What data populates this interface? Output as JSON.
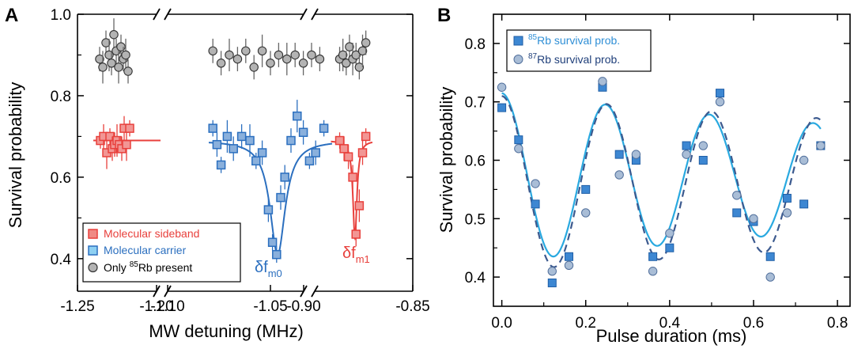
{
  "chart_data": [
    {
      "panel": "A",
      "type": "scatter",
      "xlabel": "MW detuning (MHz)",
      "ylabel": "Survival probability",
      "ylim": [
        0.32,
        1.0
      ],
      "yticks": [
        "0.4",
        "0.6",
        "0.8",
        "1.0"
      ],
      "xticks": [
        "-1.25",
        "-1.20",
        "-1.10",
        "-1.05",
        "-0.90",
        "-0.85"
      ],
      "axis_breaks": [
        "-1.20 to -1.10",
        "-1.05 to -0.90"
      ],
      "legend": {
        "placement": "bottom-left",
        "entries": [
          {
            "label": "Molecular sideband",
            "color": "#e8403c"
          },
          {
            "label": "Molecular carrier",
            "color": "#2b6fbf"
          },
          {
            "label_pre": "Only ",
            "label_sup": "85",
            "label_post": "Rb present",
            "color": "#333333"
          }
        ]
      },
      "annotations": [
        {
          "text": "δf",
          "sub": "m0",
          "color": "#2b6fbf"
        },
        {
          "text": "δf",
          "sub": "m1",
          "color": "#e8403c"
        }
      ],
      "series": [
        {
          "name": "Molecular sideband",
          "segment": 1,
          "marker": "square",
          "color": "#e8403c",
          "x": [
            -1.2355,
            -1.2335,
            -1.2315,
            -1.2295,
            -1.228,
            -1.2265,
            -1.225,
            -1.2235,
            -1.222,
            -1.2205,
            -1.219,
            -1.217
          ],
          "y": [
            0.69,
            0.7,
            0.66,
            0.7,
            0.67,
            0.68,
            0.69,
            0.68,
            0.67,
            0.72,
            0.68,
            0.72
          ],
          "err": [
            0.02,
            0.03,
            0.04,
            0.02,
            0.03,
            0.03,
            0.04,
            0.02,
            0.03,
            0.03,
            0.04,
            0.02
          ]
        },
        {
          "name": "Molecular carrier",
          "segment": 2,
          "marker": "square",
          "color": "#2b6fbf",
          "x": [
            -1.078,
            -1.076,
            -1.074,
            -1.071,
            -1.068,
            -1.064,
            -1.06,
            -1.057,
            -1.054,
            -1.051,
            -1.049,
            -1.047,
            -1.045,
            -1.043,
            -1.04,
            -1.037,
            -1.034,
            -1.031,
            -1.028,
            -1.024
          ],
          "y": [
            0.72,
            0.68,
            0.63,
            0.7,
            0.67,
            0.7,
            0.69,
            0.64,
            0.66,
            0.52,
            0.44,
            0.41,
            0.55,
            0.6,
            0.69,
            0.75,
            0.71,
            0.64,
            0.66,
            0.72
          ],
          "err": [
            0.02,
            0.03,
            0.02,
            0.04,
            0.03,
            0.03,
            0.04,
            0.02,
            0.03,
            0.03,
            0.02,
            0.02,
            0.03,
            0.03,
            0.03,
            0.04,
            0.03,
            0.02,
            0.03,
            0.02
          ]
        },
        {
          "name": "Molecular sideband",
          "segment": 3,
          "marker": "square",
          "color": "#e8403c",
          "x": [
            -0.8835,
            -0.8815,
            -0.8795,
            -0.8775,
            -0.876,
            -0.8745,
            -0.873,
            -0.8715
          ],
          "y": [
            0.69,
            0.67,
            0.65,
            0.6,
            0.46,
            0.53,
            0.66,
            0.7
          ],
          "err": [
            0.02,
            0.03,
            0.03,
            0.03,
            0.03,
            0.04,
            0.03,
            0.02
          ]
        },
        {
          "name": "Only 85Rb present",
          "segment": 1,
          "marker": "circle",
          "color": "#b3b3b3",
          "x": [
            -1.236,
            -1.234,
            -1.232,
            -1.23,
            -1.2285,
            -1.227,
            -1.2255,
            -1.224,
            -1.2225,
            -1.221,
            -1.2195,
            -1.218
          ],
          "y": [
            0.89,
            0.87,
            0.93,
            0.9,
            0.88,
            0.95,
            0.91,
            0.87,
            0.92,
            0.89,
            0.9,
            0.86
          ],
          "err": [
            0.03,
            0.04,
            0.03,
            0.04,
            0.03,
            0.04,
            0.03,
            0.04,
            0.03,
            0.03,
            0.04,
            0.03
          ]
        },
        {
          "name": "Only 85Rb present",
          "segment": 2,
          "marker": "circle",
          "color": "#b3b3b3",
          "x": [
            -1.078,
            -1.074,
            -1.07,
            -1.066,
            -1.062,
            -1.058,
            -1.054,
            -1.05,
            -1.046,
            -1.042,
            -1.038,
            -1.034,
            -1.03,
            -1.026
          ],
          "y": [
            0.91,
            0.88,
            0.9,
            0.89,
            0.91,
            0.87,
            0.91,
            0.88,
            0.9,
            0.89,
            0.9,
            0.88,
            0.9,
            0.89
          ],
          "err": [
            0.03,
            0.03,
            0.04,
            0.03,
            0.03,
            0.03,
            0.04,
            0.03,
            0.03,
            0.04,
            0.03,
            0.03,
            0.03,
            0.03
          ]
        },
        {
          "name": "Only 85Rb present",
          "segment": 3,
          "marker": "circle",
          "color": "#b3b3b3",
          "x": [
            -0.8835,
            -0.882,
            -0.8805,
            -0.879,
            -0.8775,
            -0.876,
            -0.8745,
            -0.873,
            -0.8715
          ],
          "y": [
            0.89,
            0.9,
            0.88,
            0.92,
            0.89,
            0.9,
            0.87,
            0.91,
            0.93
          ],
          "err": [
            0.03,
            0.04,
            0.03,
            0.03,
            0.04,
            0.03,
            0.03,
            0.04,
            0.03
          ]
        }
      ],
      "fits": [
        {
          "name": "sideband fit (flat)",
          "segment": 1,
          "color": "#e8403c",
          "x": [
            -1.24,
            -1.1975
          ],
          "y": [
            0.69,
            0.69
          ]
        },
        {
          "name": "carrier Lorentzian fit",
          "segment": 2,
          "color": "#2b6fbf",
          "baseline": 0.69,
          "depth": 0.28,
          "center": -1.0465,
          "hwhm": 0.0045
        },
        {
          "name": "sideband Lorentzian fit",
          "segment": 3,
          "color": "#e8403c",
          "baseline": 0.69,
          "depth": 0.24,
          "center": -0.8765,
          "hwhm": 0.0011
        }
      ]
    },
    {
      "panel": "B",
      "type": "scatter",
      "xlabel": "Pulse duration (ms)",
      "ylabel": "Survival probability",
      "xlim": [
        -0.02,
        0.83
      ],
      "ylim": [
        0.35,
        0.85
      ],
      "xticks": [
        "0.0",
        "0.2",
        "0.4",
        "0.6",
        "0.8"
      ],
      "yticks": [
        "0.4",
        "0.5",
        "0.6",
        "0.7",
        "0.8"
      ],
      "legend": {
        "placement": "top-left",
        "entries": [
          {
            "label_sup": "85",
            "label_post": "Rb survival prob.",
            "color": "#2f8fd6",
            "marker": "square"
          },
          {
            "label_sup": "87",
            "label_post": "Rb survival prob.",
            "color": "#1f3f7a",
            "marker": "circle"
          }
        ]
      },
      "series": [
        {
          "name": "85Rb survival prob.",
          "marker": "square",
          "color": "#3d87d2",
          "x": [
            0.0,
            0.04,
            0.08,
            0.12,
            0.16,
            0.2,
            0.24,
            0.28,
            0.32,
            0.36,
            0.4,
            0.44,
            0.48,
            0.52,
            0.56,
            0.6,
            0.64,
            0.68,
            0.72,
            0.76
          ],
          "y": [
            0.69,
            0.635,
            0.525,
            0.39,
            0.435,
            0.55,
            0.725,
            0.61,
            0.6,
            0.435,
            0.45,
            0.625,
            0.6,
            0.715,
            0.51,
            0.495,
            0.435,
            0.535,
            0.525,
            0.625
          ]
        },
        {
          "name": "87Rb survival prob.",
          "marker": "circle",
          "color": "#a9bdd6",
          "x": [
            0.0,
            0.04,
            0.08,
            0.12,
            0.16,
            0.2,
            0.24,
            0.28,
            0.32,
            0.36,
            0.4,
            0.44,
            0.48,
            0.52,
            0.56,
            0.6,
            0.64,
            0.68,
            0.72,
            0.76
          ],
          "y": [
            0.725,
            0.62,
            0.56,
            0.41,
            0.42,
            0.51,
            0.735,
            0.575,
            0.61,
            0.41,
            0.475,
            0.61,
            0.625,
            0.7,
            0.54,
            0.5,
            0.4,
            0.51,
            0.6,
            0.625
          ]
        }
      ],
      "fits": [
        {
          "name": "85Rb fit",
          "color": "#29a9e0",
          "dash": false,
          "baseline": 0.57,
          "amp0": 0.145,
          "tau": 1.7,
          "period": 0.2475,
          "x": [
            0.0,
            0.76
          ]
        },
        {
          "name": "87Rb fit",
          "color": "#3c5a8f",
          "dash": true,
          "baseline": 0.56,
          "amp0": 0.15,
          "tau": 2.6,
          "period": 0.25,
          "x": [
            0.0,
            0.76
          ]
        }
      ]
    }
  ]
}
